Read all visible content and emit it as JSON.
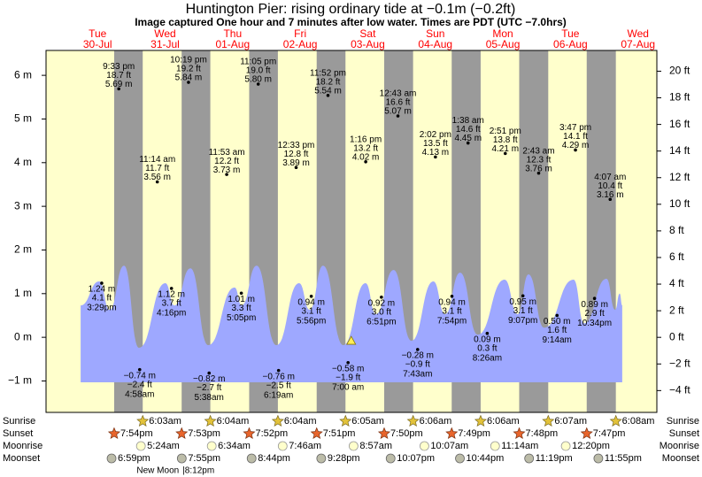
{
  "chart_data": {
    "type": "tide",
    "title": "Huntington Pier: rising  ordinary tide at −0.1m (−0.2ft)",
    "subtitle": "Image captured One hour and 7 minutes after low water. Times are PDT (UTC −7.0hrs)",
    "xlim": [
      -4.3,
      212.7
    ],
    "ylim": [
      -1.72,
      6.57
    ],
    "y2lim": [
      -5.64,
      21.56
    ],
    "yticks": [
      {
        "value": -1,
        "label": "−1 m"
      },
      {
        "value": 0,
        "label": "0 m"
      },
      {
        "value": 1,
        "label": "1 m"
      },
      {
        "value": 2,
        "label": "2 m"
      },
      {
        "value": 3,
        "label": "3 m"
      },
      {
        "value": 4,
        "label": "4 m"
      },
      {
        "value": 5,
        "label": "5 m"
      },
      {
        "value": 6,
        "label": "6 m"
      }
    ],
    "y2ticks": [
      {
        "value": -4,
        "label": "−4 ft"
      },
      {
        "value": -2,
        "label": "−2 ft"
      },
      {
        "value": 0,
        "label": "0 ft"
      },
      {
        "value": 2,
        "label": "2 ft"
      },
      {
        "value": 4,
        "label": "4 ft"
      },
      {
        "value": 6,
        "label": "6 ft"
      },
      {
        "value": 8,
        "label": "8 ft"
      },
      {
        "value": 10,
        "label": "10 ft"
      },
      {
        "value": 12,
        "label": "12 ft"
      },
      {
        "value": 14,
        "label": "14 ft"
      },
      {
        "value": 16,
        "label": "16 ft"
      },
      {
        "value": 18,
        "label": "18 ft"
      },
      {
        "value": 20,
        "label": "20 ft"
      }
    ],
    "day_color": "#ffffcc",
    "night_color": "#9a9a9a",
    "header_color": "#ff0000",
    "tide_curve": {
      "color": "#9ea8ff",
      "base": -1.03,
      "x": [
        8.0,
        14.6,
        18.3,
        23.4,
        28.7,
        38.1,
        41.3,
        47.0,
        53.3,
        62.7,
        65.2,
        70.5,
        77.5,
        85.6,
        89.4,
        94.1,
        101.3,
        109.2,
        112.9,
        119.2,
        125.5,
        133.3,
        137.5,
        142.8,
        149.1,
        158.6,
        163.3,
        167.1,
        172.7,
        183.1,
        186.9,
        194.8,
        197.9,
        199.5,
        200.4
      ],
      "values": [
        0.73,
        1.28,
        0.63,
        1.64,
        -0.24,
        1.24,
        0.73,
        1.58,
        -0.18,
        1.14,
        0.73,
        1.64,
        -0.18,
        1.24,
        0.63,
        1.64,
        -0.18,
        1.24,
        0.53,
        1.54,
        -0.08,
        1.28,
        0.53,
        1.48,
        0.06,
        1.32,
        0.53,
        1.44,
        0.22,
        1.32,
        0.32,
        1.34,
        0.63,
        1.0,
        0.73
      ]
    },
    "now_marker": {
      "x": 104.12,
      "value": -0.1,
      "color": "#ffee55"
    },
    "row_labels": [
      "Sunrise",
      "Sunset",
      "Moonrise",
      "Moonset"
    ],
    "days": [
      {
        "weekday": "Tue",
        "date": "30-Jul",
        "sunset": "7:54pm",
        "moonset": "6:59pm",
        "tides": [
          {
            "time": "3:29pm",
            "feet": "4.1 ft",
            "value": 1.24,
            "value_label": "1.24 m"
          },
          {
            "time": "9:33 pm",
            "feet": "18.7 ft",
            "value": 5.69,
            "value_label": "5.69 m"
          }
        ]
      },
      {
        "weekday": "Wed",
        "date": "31-Jul",
        "sunrise": "6:03am",
        "sunset": "7:53pm",
        "moonrise": "5:24am",
        "moonset": "7:55pm",
        "moon_phase": "New Moon",
        "moon_phase_time": "|8:12pm",
        "tides": [
          {
            "time": "4:58am",
            "feet": "−2.4 ft",
            "value": -0.74,
            "value_label": "−0.74 m"
          },
          {
            "time": "11:14 am",
            "feet": "11.7 ft",
            "value": 3.56,
            "value_label": "3.56 m"
          },
          {
            "time": "4:16pm",
            "feet": "3.7 ft",
            "value": 1.12,
            "value_label": "1.12 m"
          },
          {
            "time": "10:19 pm",
            "feet": "19.2 ft",
            "value": 5.84,
            "value_label": "5.84 m"
          }
        ]
      },
      {
        "weekday": "Thu",
        "date": "01-Aug",
        "sunrise": "6:04am",
        "sunset": "7:52pm",
        "moonrise": "6:34am",
        "moonset": "8:44pm",
        "tides": [
          {
            "time": "5:38am",
            "feet": "−2.7 ft",
            "value": -0.82,
            "value_label": "−0.82 m"
          },
          {
            "time": "11:53 am",
            "feet": "12.2 ft",
            "value": 3.73,
            "value_label": "3.73 m"
          },
          {
            "time": "5:05pm",
            "feet": "3.3 ft",
            "value": 1.01,
            "value_label": "1.01 m"
          },
          {
            "time": "11:05 pm",
            "feet": "19.0 ft",
            "value": 5.8,
            "value_label": "5.80 m"
          }
        ]
      },
      {
        "weekday": "Fri",
        "date": "02-Aug",
        "sunrise": "6:04am",
        "sunset": "7:51pm",
        "moonrise": "7:46am",
        "moonset": "9:28pm",
        "tides": [
          {
            "time": "6:19am",
            "feet": "−2.5 ft",
            "value": -0.76,
            "value_label": "−0.76 m"
          },
          {
            "time": "12:33 pm",
            "feet": "12.8 ft",
            "value": 3.89,
            "value_label": "3.89 m"
          },
          {
            "time": "5:56pm",
            "feet": "3.1 ft",
            "value": 0.94,
            "value_label": "0.94 m"
          },
          {
            "time": "11:52 pm",
            "feet": "18.2 ft",
            "value": 5.54,
            "value_label": "5.54 m"
          }
        ]
      },
      {
        "weekday": "Sat",
        "date": "03-Aug",
        "sunrise": "6:05am",
        "sunset": "7:50pm",
        "moonrise": "8:57am",
        "moonset": "10:07pm",
        "tides": [
          {
            "time": "7:00 am",
            "feet": "−1.9 ft",
            "value": -0.58,
            "value_label": "−0.58 m"
          },
          {
            "time": "1:16 pm",
            "feet": "13.2 ft",
            "value": 4.02,
            "value_label": "4.02 m"
          },
          {
            "time": "6:51pm",
            "feet": "3.0 ft",
            "value": 0.92,
            "value_label": "0.92 m"
          }
        ]
      },
      {
        "weekday": "Sun",
        "date": "04-Aug",
        "sunrise": "6:06am",
        "sunset": "7:49pm",
        "moonrise": "10:07am",
        "moonset": "10:44pm",
        "tides": [
          {
            "time": "12:43 am",
            "feet": "16.6 ft",
            "value": 5.07,
            "value_label": "5.07 m"
          },
          {
            "time": "7:43am",
            "feet": "−0.9 ft",
            "value": -0.28,
            "value_label": "−0.28 m"
          },
          {
            "time": "2:02 pm",
            "feet": "13.5 ft",
            "value": 4.13,
            "value_label": "4.13 m"
          },
          {
            "time": "7:54pm",
            "feet": "3.1 ft",
            "value": 0.94,
            "value_label": "0.94 m"
          }
        ]
      },
      {
        "weekday": "Mon",
        "date": "05-Aug",
        "sunrise": "6:06am",
        "sunset": "7:48pm",
        "moonrise": "11:14am",
        "moonset": "11:19pm",
        "tides": [
          {
            "time": "1:38 am",
            "feet": "14.6 ft",
            "value": 4.45,
            "value_label": "4.45 m"
          },
          {
            "time": "8:26am",
            "feet": "0.3 ft",
            "value": 0.09,
            "value_label": "0.09 m"
          },
          {
            "time": "2:51 pm",
            "feet": "13.8 ft",
            "value": 4.21,
            "value_label": "4.21 m"
          },
          {
            "time": "9:07pm",
            "feet": "3.1 ft",
            "value": 0.95,
            "value_label": "0.95 m"
          }
        ]
      },
      {
        "weekday": "Tue",
        "date": "06-Aug",
        "sunrise": "6:07am",
        "sunset": "7:47pm",
        "moonrise": "12:20pm",
        "moonset": "11:55pm",
        "tides": [
          {
            "time": "2:43 am",
            "feet": "12.3 ft",
            "value": 3.76,
            "value_label": "3.76 m"
          },
          {
            "time": "9:14am",
            "feet": "1.6 ft",
            "value": 0.5,
            "value_label": "0.50 m"
          },
          {
            "time": "3:47 pm",
            "feet": "14.1 ft",
            "value": 4.29,
            "value_label": "4.29 m"
          },
          {
            "time": "10:34pm",
            "feet": "2.9 ft",
            "value": 0.89,
            "value_label": "0.89 m"
          }
        ]
      },
      {
        "weekday": "Wed",
        "date": "07-Aug",
        "sunrise": "6:08am",
        "tides": [
          {
            "time": "4:07 am",
            "feet": "10.4 ft",
            "value": 3.16,
            "value_label": "3.16 m"
          }
        ]
      }
    ]
  }
}
